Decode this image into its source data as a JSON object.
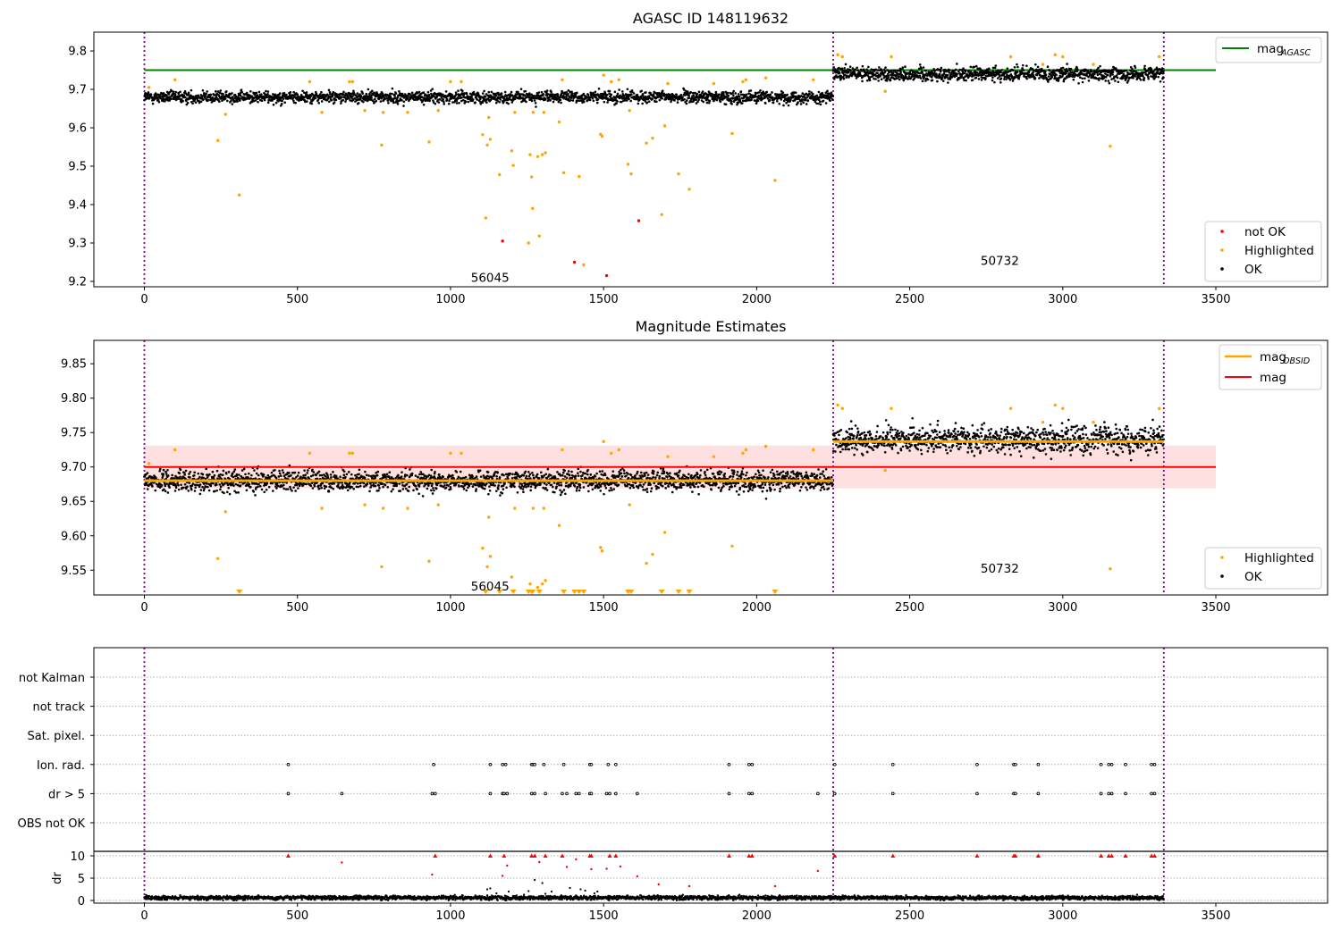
{
  "chart_data": [
    {
      "type": "scatter",
      "title": "AGASC ID 148119632",
      "xlim": [
        -165,
        3865
      ],
      "ylim": [
        9.186,
        9.849
      ],
      "xticks": [
        0,
        500,
        1000,
        1500,
        2000,
        2500,
        3000,
        3500
      ],
      "yticks": [
        9.2,
        9.3,
        9.4,
        9.5,
        9.6,
        9.7,
        9.8
      ],
      "ytick_labels": [
        "9.2",
        "9.3",
        "9.4",
        "9.5",
        "9.6",
        "9.7",
        "9.8"
      ],
      "vlines": [
        0,
        2250,
        3330
      ],
      "grid": false,
      "annotations": [
        {
          "text": "56045",
          "x": 1125,
          "y": 9.21
        },
        {
          "text": "50732",
          "x": 2790,
          "y": 9.255
        }
      ],
      "lines": [
        {
          "name": "mag",
          "subscript": "AGASC",
          "color": "#008000",
          "x": [
            0,
            3500
          ],
          "y": [
            9.75,
            9.75
          ]
        }
      ],
      "ok_segments": [
        {
          "x_range": [
            0,
            2250
          ],
          "mean": 9.68,
          "noise": 0.0085,
          "count": 2250
        },
        {
          "x_range": [
            2250,
            3330
          ],
          "mean": 9.74,
          "noise": 0.0105,
          "count": 1080
        }
      ],
      "series": [
        {
          "name": "not OK",
          "color": "#ff0000",
          "points": [
            [
              1170,
              9.305
            ],
            [
              1405,
              9.25
            ],
            [
              1510,
              9.215
            ],
            [
              1615,
              9.358
            ]
          ]
        },
        {
          "name": "Highlighted",
          "color": "#ffa500",
          "points": [
            [
              15,
              9.705
            ],
            [
              100,
              9.725
            ],
            [
              240,
              9.567
            ],
            [
              265,
              9.635
            ],
            [
              310,
              9.425
            ],
            [
              540,
              9.72
            ],
            [
              580,
              9.64
            ],
            [
              670,
              9.72
            ],
            [
              680,
              9.72
            ],
            [
              720,
              9.645
            ],
            [
              775,
              9.555
            ],
            [
              780,
              9.64
            ],
            [
              860,
              9.64
            ],
            [
              930,
              9.563
            ],
            [
              960,
              9.645
            ],
            [
              1000,
              9.72
            ],
            [
              1035,
              9.72
            ],
            [
              1105,
              9.582
            ],
            [
              1115,
              9.365
            ],
            [
              1120,
              9.555
            ],
            [
              1125,
              9.627
            ],
            [
              1130,
              9.57
            ],
            [
              1160,
              9.478
            ],
            [
              1200,
              9.54
            ],
            [
              1205,
              9.502
            ],
            [
              1210,
              9.64
            ],
            [
              1255,
              9.3
            ],
            [
              1260,
              9.53
            ],
            [
              1265,
              9.472
            ],
            [
              1268,
              9.39
            ],
            [
              1270,
              9.64
            ],
            [
              1285,
              9.525
            ],
            [
              1290,
              9.318
            ],
            [
              1300,
              9.53
            ],
            [
              1305,
              9.64
            ],
            [
              1310,
              9.535
            ],
            [
              1355,
              9.615
            ],
            [
              1365,
              9.725
            ],
            [
              1370,
              9.483
            ],
            [
              1420,
              9.473
            ],
            [
              1435,
              9.243
            ],
            [
              1490,
              9.583
            ],
            [
              1495,
              9.578
            ],
            [
              1500,
              9.737
            ],
            [
              1525,
              9.72
            ],
            [
              1550,
              9.725
            ],
            [
              1580,
              9.505
            ],
            [
              1585,
              9.645
            ],
            [
              1590,
              9.48
            ],
            [
              1640,
              9.56
            ],
            [
              1660,
              9.573
            ],
            [
              1690,
              9.374
            ],
            [
              1700,
              9.605
            ],
            [
              1710,
              9.715
            ],
            [
              1745,
              9.48
            ],
            [
              1780,
              9.44
            ],
            [
              1860,
              9.715
            ],
            [
              1920,
              9.585
            ],
            [
              1955,
              9.72
            ],
            [
              1965,
              9.725
            ],
            [
              2030,
              9.73
            ],
            [
              2060,
              9.463
            ],
            [
              2185,
              9.725
            ],
            [
              2265,
              9.79
            ],
            [
              2280,
              9.785
            ],
            [
              2420,
              9.695
            ],
            [
              2440,
              9.785
            ],
            [
              2830,
              9.785
            ],
            [
              2935,
              9.765
            ],
            [
              2975,
              9.79
            ],
            [
              3000,
              9.785
            ],
            [
              3100,
              9.765
            ],
            [
              3155,
              9.552
            ],
            [
              3315,
              9.785
            ]
          ]
        }
      ],
      "legend": {
        "location": "lower right",
        "entries": [
          "not OK",
          "Highlighted",
          "OK"
        ]
      },
      "legend_lines": {
        "location": "upper right",
        "entries": [
          "mag"
        ]
      }
    },
    {
      "type": "scatter",
      "title": "Magnitude Estimates",
      "xlim": [
        -165,
        3865
      ],
      "ylim": [
        9.514,
        9.884
      ],
      "xticks": [
        0,
        500,
        1000,
        1500,
        2000,
        2500,
        3000,
        3500
      ],
      "yticks": [
        9.55,
        9.6,
        9.65,
        9.7,
        9.75,
        9.8,
        9.85
      ],
      "ytick_labels": [
        "9.55",
        "9.60",
        "9.65",
        "9.70",
        "9.75",
        "9.80",
        "9.85"
      ],
      "vlines": [
        0,
        2250,
        3330
      ],
      "grid": false,
      "annotations": [
        {
          "text": "56045",
          "x": 1125,
          "y": 9.527
        },
        {
          "text": "50732",
          "x": 2790,
          "y": 9.553
        }
      ],
      "band": {
        "x": [
          0,
          3500
        ],
        "y": [
          9.669,
          9.731
        ],
        "color": "#ffe0e0"
      },
      "lines": [
        {
          "name": "mag",
          "subscript": "OBSID",
          "color": "#ffa500",
          "segments": [
            {
              "x": [
                0,
                2250
              ],
              "y": 9.68
            },
            {
              "x": [
                2250,
                3330
              ],
              "y": 9.737
            }
          ]
        },
        {
          "name": "mag",
          "color": "#ff0000",
          "x": [
            0,
            3500
          ],
          "y": [
            9.7,
            9.7
          ]
        }
      ],
      "ok_segments": [
        {
          "x_range": [
            0,
            2250
          ],
          "mean": 9.68,
          "noise": 0.0085,
          "count": 2250
        },
        {
          "x_range": [
            2250,
            3330
          ],
          "mean": 9.74,
          "noise": 0.0105,
          "count": 1080
        }
      ],
      "series": [
        {
          "name": "Highlighted",
          "color": "#ffa500",
          "points": [
            [
              15,
              9.705
            ],
            [
              100,
              9.725
            ],
            [
              240,
              9.567
            ],
            [
              265,
              9.635
            ],
            [
              540,
              9.72
            ],
            [
              580,
              9.64
            ],
            [
              670,
              9.72
            ],
            [
              680,
              9.72
            ],
            [
              720,
              9.645
            ],
            [
              775,
              9.555
            ],
            [
              780,
              9.64
            ],
            [
              860,
              9.64
            ],
            [
              930,
              9.563
            ],
            [
              960,
              9.645
            ],
            [
              1000,
              9.72
            ],
            [
              1035,
              9.72
            ],
            [
              1105,
              9.582
            ],
            [
              1120,
              9.555
            ],
            [
              1125,
              9.627
            ],
            [
              1130,
              9.57
            ],
            [
              1200,
              9.54
            ],
            [
              1210,
              9.64
            ],
            [
              1260,
              9.53
            ],
            [
              1270,
              9.64
            ],
            [
              1285,
              9.525
            ],
            [
              1300,
              9.53
            ],
            [
              1305,
              9.64
            ],
            [
              1310,
              9.535
            ],
            [
              1355,
              9.615
            ],
            [
              1365,
              9.725
            ],
            [
              1490,
              9.583
            ],
            [
              1495,
              9.578
            ],
            [
              1500,
              9.737
            ],
            [
              1525,
              9.72
            ],
            [
              1550,
              9.725
            ],
            [
              1585,
              9.645
            ],
            [
              1640,
              9.56
            ],
            [
              1660,
              9.573
            ],
            [
              1700,
              9.605
            ],
            [
              1710,
              9.715
            ],
            [
              1860,
              9.715
            ],
            [
              1920,
              9.585
            ],
            [
              1955,
              9.72
            ],
            [
              1965,
              9.725
            ],
            [
              2030,
              9.73
            ],
            [
              2185,
              9.725
            ],
            [
              2265,
              9.79
            ],
            [
              2280,
              9.785
            ],
            [
              2420,
              9.695
            ],
            [
              2440,
              9.785
            ],
            [
              2830,
              9.785
            ],
            [
              2935,
              9.765
            ],
            [
              2975,
              9.79
            ],
            [
              3000,
              9.785
            ],
            [
              3100,
              9.765
            ],
            [
              3155,
              9.552
            ],
            [
              3315,
              9.785
            ]
          ]
        },
        {
          "name": "Highlighted (below axis)",
          "color": "#ffa500",
          "marker": "triangle-down",
          "points": [
            [
              310,
              9.514
            ],
            [
              1115,
              9.514
            ],
            [
              1160,
              9.514
            ],
            [
              1205,
              9.514
            ],
            [
              1255,
              9.514
            ],
            [
              1265,
              9.514
            ],
            [
              1268,
              9.514
            ],
            [
              1290,
              9.514
            ],
            [
              1370,
              9.514
            ],
            [
              1405,
              9.514
            ],
            [
              1420,
              9.514
            ],
            [
              1435,
              9.514
            ],
            [
              1580,
              9.514
            ],
            [
              1590,
              9.514
            ],
            [
              1690,
              9.514
            ],
            [
              1745,
              9.514
            ],
            [
              1780,
              9.514
            ],
            [
              2060,
              9.514
            ]
          ]
        }
      ],
      "legend": {
        "location": "lower right",
        "entries": [
          "Highlighted",
          "OK"
        ]
      },
      "legend_lines": {
        "location": "upper right",
        "entries": [
          "mag",
          "mag"
        ]
      }
    },
    {
      "type": "scatter",
      "title": "",
      "xlim": [
        -165,
        3865
      ],
      "xticks": [
        0,
        500,
        1000,
        1500,
        2000,
        2500,
        3000,
        3500
      ],
      "vlines": [
        0,
        2250,
        3330
      ],
      "flag_rows": [
        "not Kalman",
        "not track",
        "Sat. pixel.",
        "Ion. rad.",
        "dr > 5",
        "OBS not OK"
      ],
      "flags": {
        "Ion. rad.": [
          470,
          945,
          1130,
          1170,
          1180,
          1265,
          1270,
          1275,
          1305,
          1370,
          1455,
          1460,
          1515,
          1540,
          1910,
          1975,
          1985,
          2255,
          2445,
          2720,
          2840,
          2845,
          2920,
          3125,
          3150,
          3160,
          3205,
          3290,
          3300
        ],
        "dr > 5": [
          470,
          645,
          940,
          950,
          1130,
          1170,
          1175,
          1185,
          1265,
          1275,
          1310,
          1365,
          1380,
          1410,
          1420,
          1455,
          1460,
          1510,
          1520,
          1540,
          1610,
          1910,
          1975,
          1985,
          2200,
          2255,
          2445,
          2720,
          2840,
          2845,
          2920,
          3125,
          3150,
          3160,
          3205,
          3290,
          3300
        ]
      },
      "dr": {
        "ylabel": "dr",
        "ylim": [
          0,
          10
        ],
        "yticks": [
          0,
          5,
          10
        ],
        "baseline": {
          "x_range": [
            0,
            3330
          ],
          "mean": 0.6,
          "noise": 0.35,
          "count": 3330
        },
        "capped": [
          470,
          950,
          1130,
          1175,
          1265,
          1275,
          1310,
          1365,
          1455,
          1460,
          1520,
          1540,
          1910,
          1975,
          1985,
          2255,
          2445,
          2720,
          2840,
          2845,
          2920,
          3125,
          3150,
          3160,
          3205,
          3290,
          3300
        ],
        "red_points": [
          [
            645,
            8.5
          ],
          [
            940,
            5.8
          ],
          [
            1170,
            5.5
          ],
          [
            1185,
            7.8
          ],
          [
            1290,
            8.6
          ],
          [
            1380,
            7.5
          ],
          [
            1410,
            9.2
          ],
          [
            1460,
            7.0
          ],
          [
            1510,
            7.1
          ],
          [
            1555,
            7.6
          ],
          [
            1610,
            5.4
          ],
          [
            1680,
            3.6
          ],
          [
            1780,
            3.2
          ],
          [
            2060,
            3.2
          ],
          [
            2200,
            6.6
          ]
        ],
        "black_points": [
          [
            1120,
            2.5
          ],
          [
            1130,
            2.7
          ],
          [
            1150,
            1.6
          ],
          [
            1190,
            2.0
          ],
          [
            1240,
            1.3
          ],
          [
            1255,
            2.1
          ],
          [
            1275,
            4.6
          ],
          [
            1300,
            3.9
          ],
          [
            1310,
            1.5
          ],
          [
            1330,
            2.0
          ],
          [
            1390,
            2.8
          ],
          [
            1425,
            2.5
          ],
          [
            1440,
            2.2
          ],
          [
            1470,
            1.6
          ],
          [
            1480,
            2.0
          ]
        ]
      }
    }
  ]
}
